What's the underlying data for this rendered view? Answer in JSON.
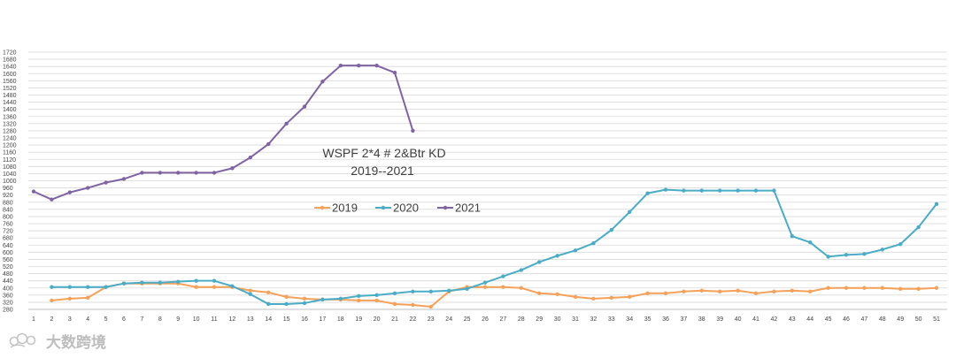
{
  "chart_data": {
    "type": "line",
    "title": "WSPF 2*4 # 2&Btr KD",
    "subtitle": "2019--2021",
    "xlabel": "",
    "ylabel": "",
    "x": [
      1,
      2,
      3,
      4,
      5,
      6,
      7,
      8,
      9,
      10,
      11,
      12,
      13,
      14,
      15,
      16,
      17,
      18,
      19,
      20,
      21,
      22,
      23,
      24,
      25,
      26,
      27,
      28,
      29,
      30,
      31,
      32,
      33,
      34,
      35,
      36,
      37,
      38,
      39,
      40,
      41,
      42,
      43,
      44,
      45,
      46,
      47,
      48,
      49,
      50,
      51
    ],
    "ylim": [
      280,
      1720
    ],
    "ytick_step": 40,
    "grid": true,
    "legend_position": "center",
    "series": [
      {
        "name": "2019",
        "color": "#F4A15A",
        "values": [
          null,
          330,
          340,
          345,
          405,
          425,
          425,
          425,
          425,
          405,
          405,
          405,
          385,
          375,
          350,
          340,
          335,
          335,
          330,
          330,
          310,
          305,
          295,
          380,
          405,
          405,
          405,
          400,
          370,
          365,
          350,
          340,
          345,
          350,
          370,
          370,
          380,
          385,
          380,
          385,
          370,
          380,
          385,
          380,
          400,
          400,
          400,
          400,
          395,
          395,
          400
        ]
      },
      {
        "name": "2020",
        "color": "#4BACC6",
        "values": [
          null,
          405,
          405,
          405,
          405,
          425,
          430,
          430,
          435,
          440,
          440,
          410,
          365,
          310,
          310,
          315,
          335,
          340,
          355,
          360,
          370,
          380,
          380,
          385,
          395,
          430,
          465,
          500,
          545,
          580,
          610,
          650,
          725,
          825,
          930,
          950,
          945,
          945,
          945,
          945,
          945,
          945,
          690,
          655,
          575,
          585,
          590,
          615,
          645,
          740,
          870
        ]
      },
      {
        "name": "2021",
        "color": "#8064A2",
        "values": [
          940,
          895,
          935,
          960,
          990,
          1010,
          1045,
          1045,
          1045,
          1045,
          1045,
          1070,
          1130,
          1205,
          1320,
          1415,
          1555,
          1645,
          1645,
          1645,
          1605,
          1280,
          null,
          null,
          null,
          null,
          null,
          null,
          null,
          null,
          null,
          null,
          null,
          null,
          null,
          null,
          null,
          null,
          null,
          null,
          null,
          null,
          null,
          null,
          null,
          null,
          null,
          null,
          null,
          null,
          null
        ]
      }
    ]
  },
  "watermark": {
    "text": "大数跨境",
    "logo_icon": "butterfly-logo-icon"
  }
}
